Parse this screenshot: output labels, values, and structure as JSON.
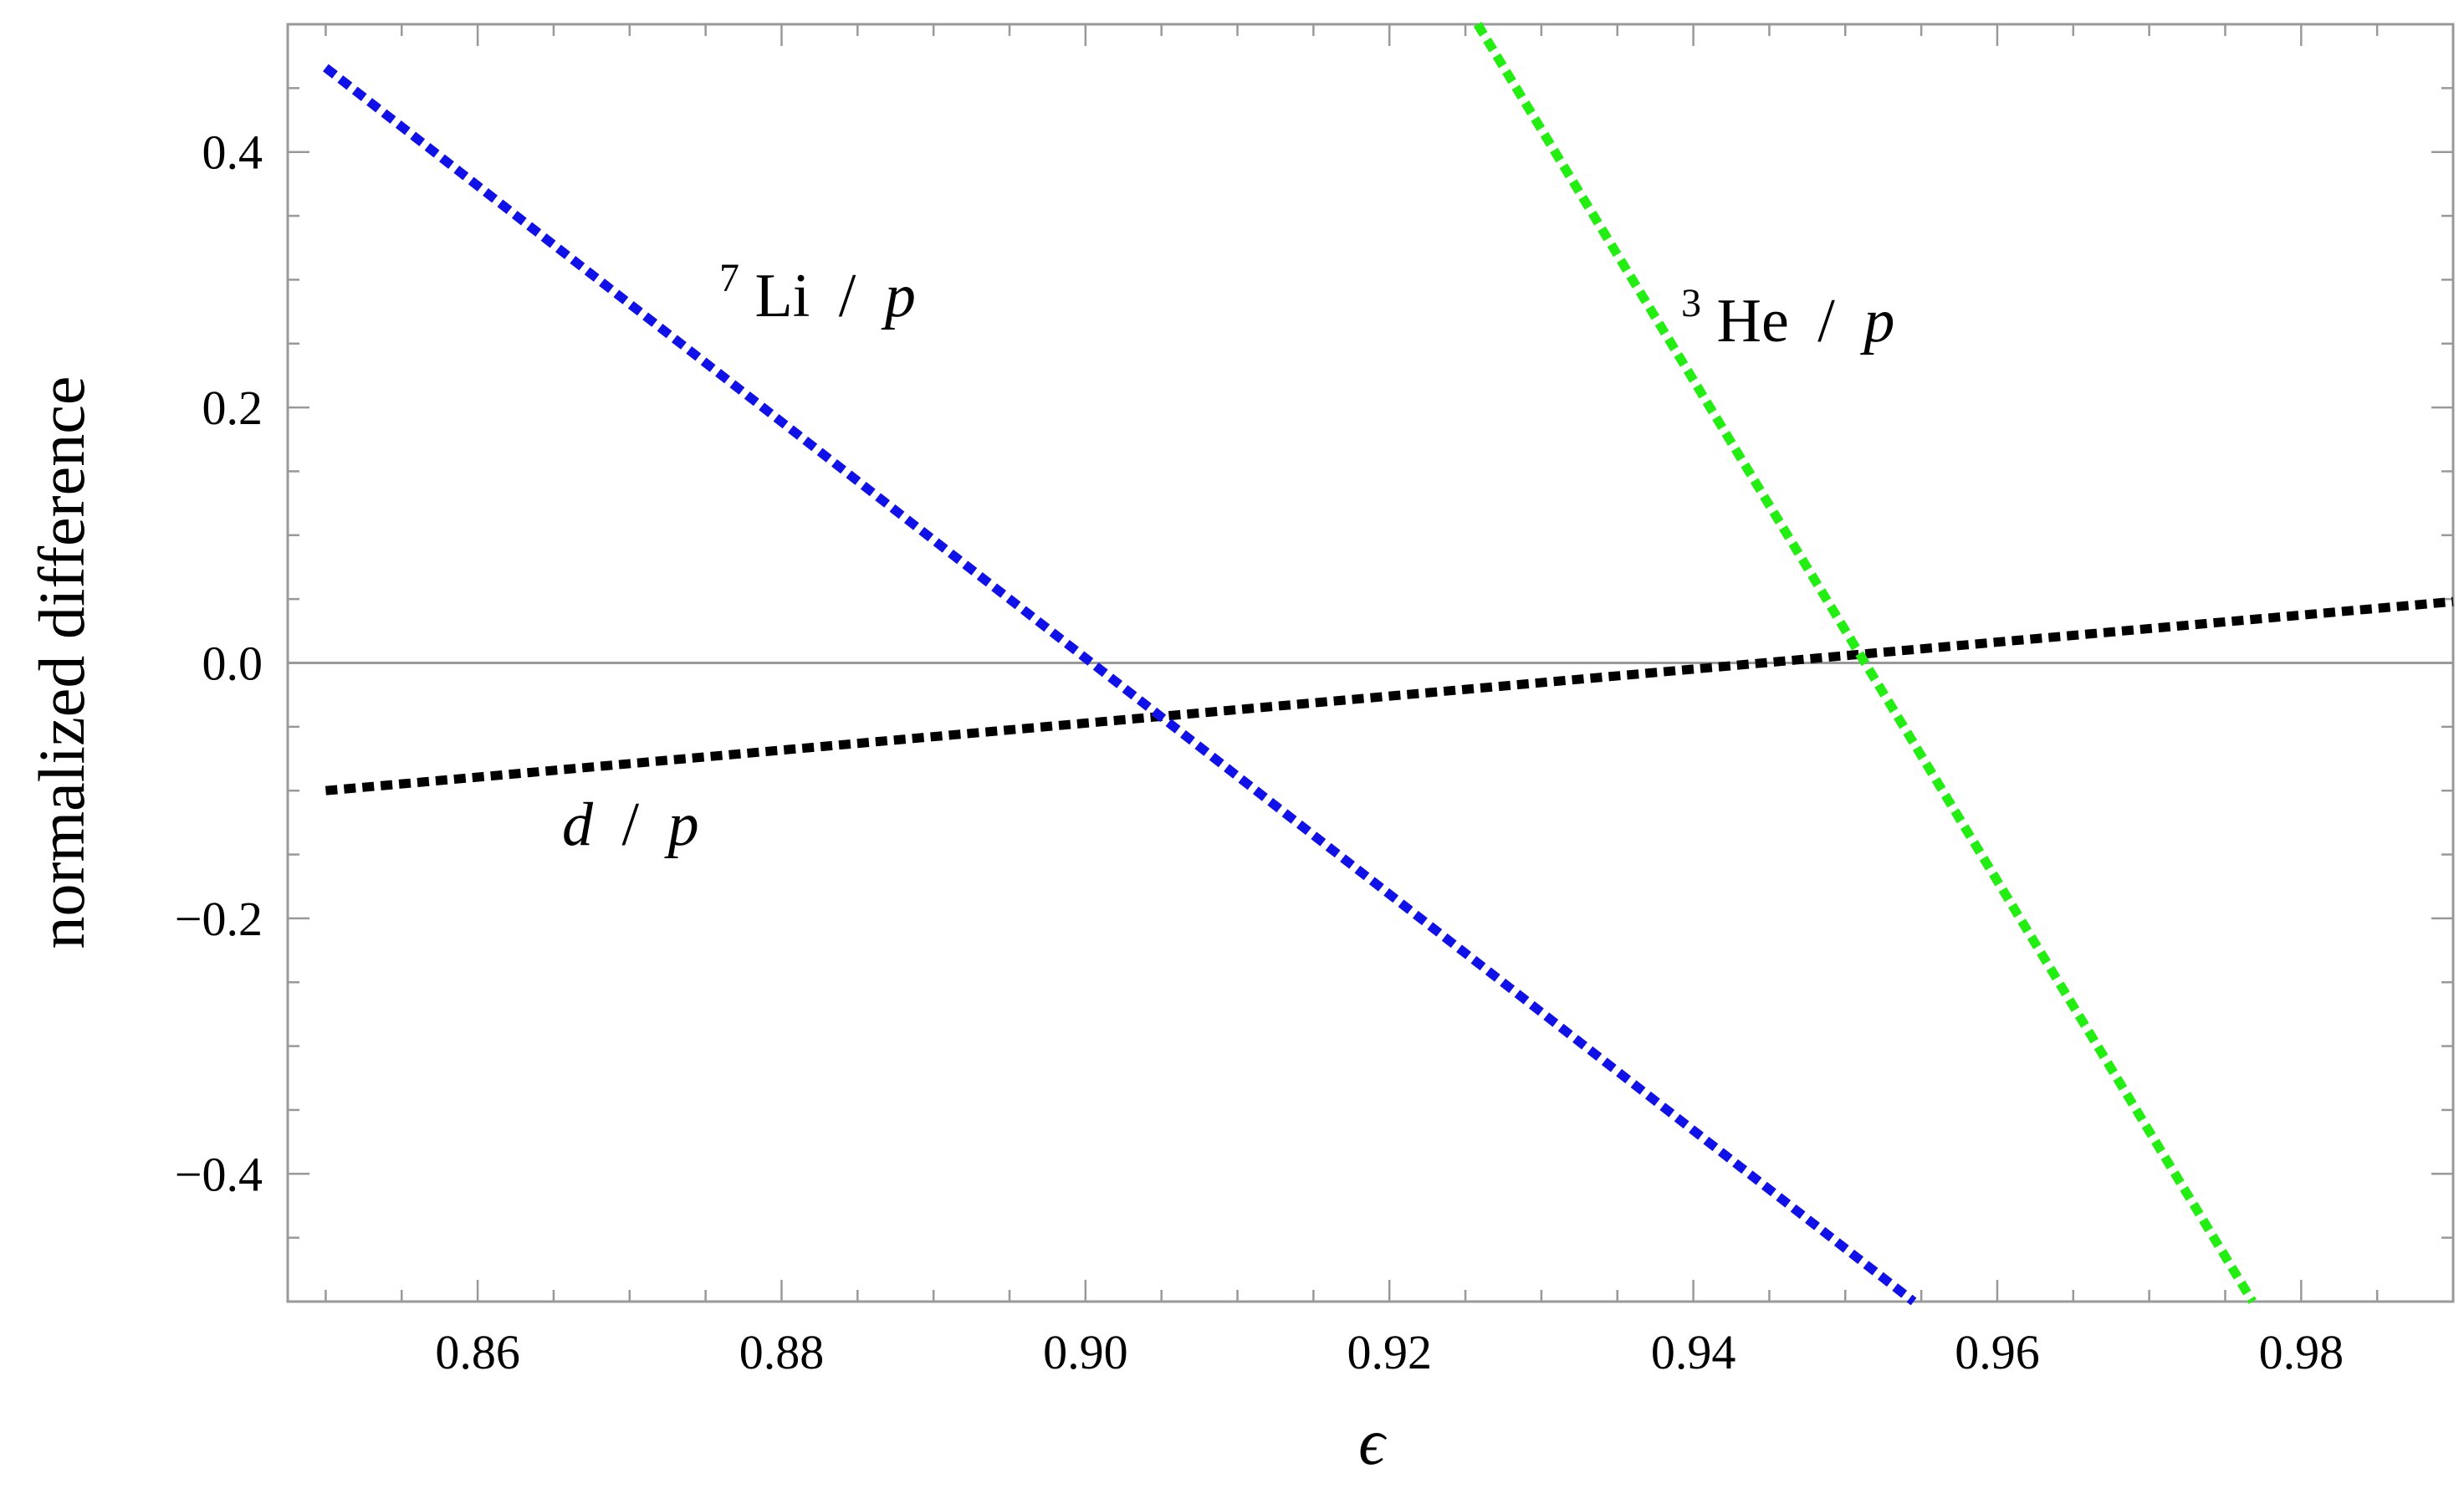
{
  "chart_data": {
    "type": "line",
    "xlabel": "ϵ",
    "ylabel": "normalized difference",
    "xlim": [
      0.8475,
      0.99
    ],
    "ylim": [
      -0.5,
      0.5
    ],
    "x_ticks": [
      0.86,
      0.88,
      0.9,
      0.92,
      0.94,
      0.96,
      0.98
    ],
    "x_tick_labels": [
      "0.86",
      "0.88",
      "0.90",
      "0.92",
      "0.94",
      "0.96",
      "0.98"
    ],
    "y_ticks": [
      -0.4,
      -0.2,
      0.0,
      0.2,
      0.4
    ],
    "y_tick_labels": [
      "−0.4",
      "−0.2",
      "0.0",
      "0.2",
      "0.4"
    ],
    "grid": false,
    "zero_line": true,
    "series": [
      {
        "name": "d / p",
        "label_parts": {
          "sup": "",
          "base": "d",
          "slash": "/",
          "tail": "p",
          "base_italic": true
        },
        "color": "#000000",
        "style": "dashed",
        "x": [
          0.85,
          0.99
        ],
        "y": [
          -0.1,
          0.048
        ]
      },
      {
        "name": "7Li / p",
        "label_parts": {
          "sup": "7",
          "base": "Li",
          "slash": "/",
          "tail": "p",
          "base_italic": false
        },
        "color": "#1010e8",
        "style": "dashed",
        "x": [
          0.85,
          0.9545
        ],
        "y": [
          0.466,
          -0.5
        ]
      },
      {
        "name": "3He / p",
        "label_parts": {
          "sup": "3",
          "base": "He",
          "slash": "/",
          "tail": "p",
          "base_italic": false
        },
        "color": "#22ee11",
        "style": "dashed",
        "x": [
          0.9258,
          0.9768
        ],
        "y": [
          0.5,
          -0.5
        ]
      }
    ]
  }
}
